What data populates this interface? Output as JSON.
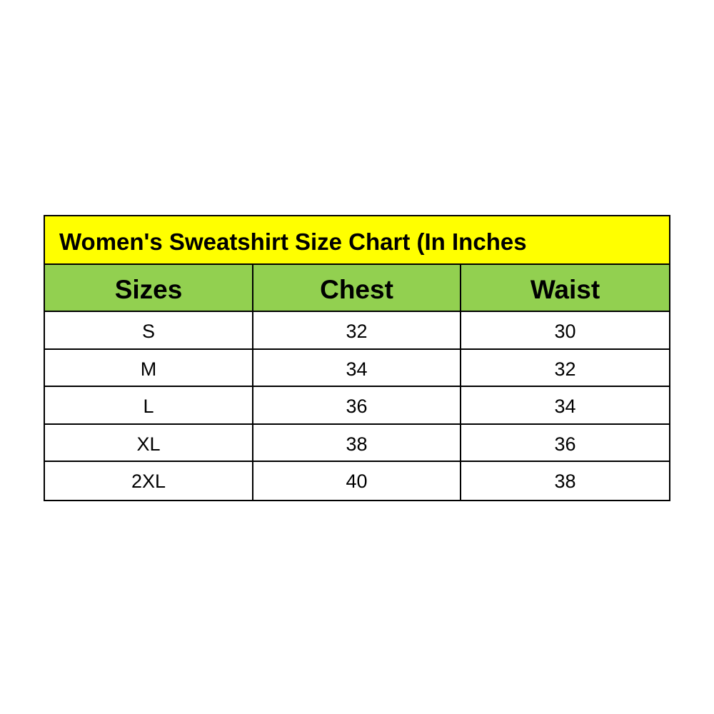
{
  "title": "Women's Sweatshirt Size Chart (In Inches",
  "colors": {
    "title_bg": "#ffff00",
    "header_bg": "#92d050"
  },
  "headers": [
    "Sizes",
    "Chest",
    "Waist"
  ],
  "rows": [
    [
      "S",
      "32",
      "30"
    ],
    [
      "M",
      "34",
      "32"
    ],
    [
      "L",
      "36",
      "34"
    ],
    [
      "XL",
      "38",
      "36"
    ],
    [
      "2XL",
      "40",
      "38"
    ]
  ]
}
